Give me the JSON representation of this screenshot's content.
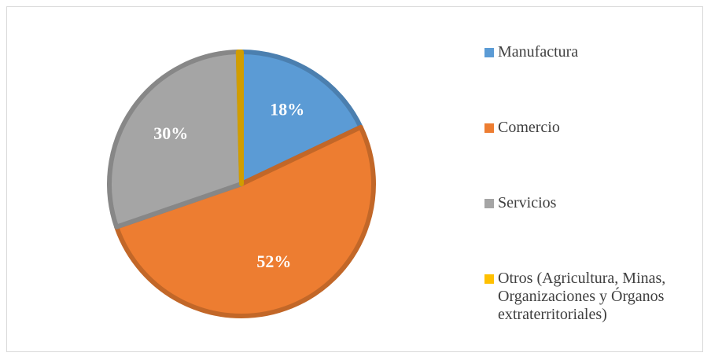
{
  "chart_data": {
    "type": "pie",
    "categories": [
      "Manufactura",
      "Comercio",
      "Servicios",
      "Otros (Agricultura, Minas, Organizaciones y Órganos extraterritoriales)"
    ],
    "values": [
      18,
      52,
      30,
      0.4
    ],
    "value_labels": [
      "18%",
      "52%",
      "30%",
      null
    ],
    "colors": [
      "#5b9bd5",
      "#ed7d31",
      "#a5a5a5",
      "#ffc000"
    ],
    "legend": "right"
  }
}
